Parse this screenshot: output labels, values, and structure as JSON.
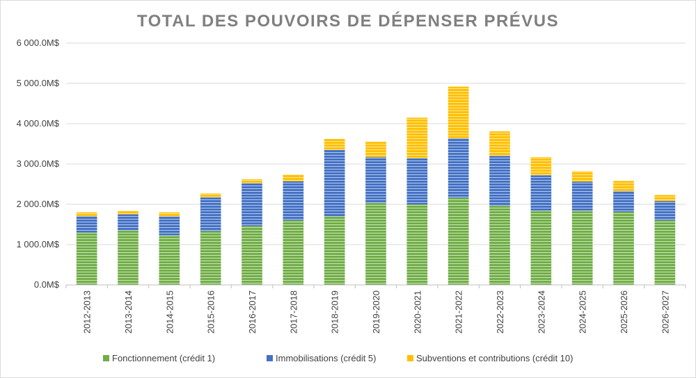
{
  "chart_data": {
    "type": "bar",
    "stacked": true,
    "title": "TOTAL DES POUVOIRS DE DÉPENSER PRÉVUS",
    "xlabel": "",
    "ylabel": "",
    "ylim": [
      0,
      6000
    ],
    "y_ticks": [
      0,
      1000,
      2000,
      3000,
      4000,
      5000,
      6000
    ],
    "y_tick_labels": [
      "0.0M$",
      "1 000.0M$",
      "2 000.0M$",
      "3 000.0M$",
      "4 000.0M$",
      "5 000.0M$",
      "6 000.0M$"
    ],
    "grid": true,
    "legend_position": "bottom",
    "categories": [
      "2012-2013",
      "2013-2014",
      "2014-2015",
      "2015-2016",
      "2016-2017",
      "2017-2018",
      "2018-2019",
      "2019-2020",
      "2020-2021",
      "2021-2022",
      "2022-2023",
      "2023-2024",
      "2024-2025",
      "2025-2026",
      "2026-2027"
    ],
    "series": [
      {
        "name": "Fonctionnement (crédit 1)",
        "color": "#70ad47",
        "values": [
          1300,
          1350,
          1230,
          1330,
          1460,
          1600,
          1700,
          2030,
          2000,
          2160,
          1960,
          1840,
          1840,
          1810,
          1600
        ]
      },
      {
        "name": "Immobilisations (crédit 5)",
        "color": "#4472c4",
        "values": [
          410,
          400,
          470,
          840,
          1060,
          970,
          1650,
          1140,
          1140,
          1480,
          1240,
          880,
          720,
          520,
          480
        ]
      },
      {
        "name": "Subventions et contributions (crédit 10)",
        "color": "#ffc000",
        "values": [
          90,
          90,
          100,
          100,
          100,
          170,
          270,
          380,
          1010,
          1280,
          610,
          450,
          260,
          250,
          150
        ]
      }
    ]
  }
}
